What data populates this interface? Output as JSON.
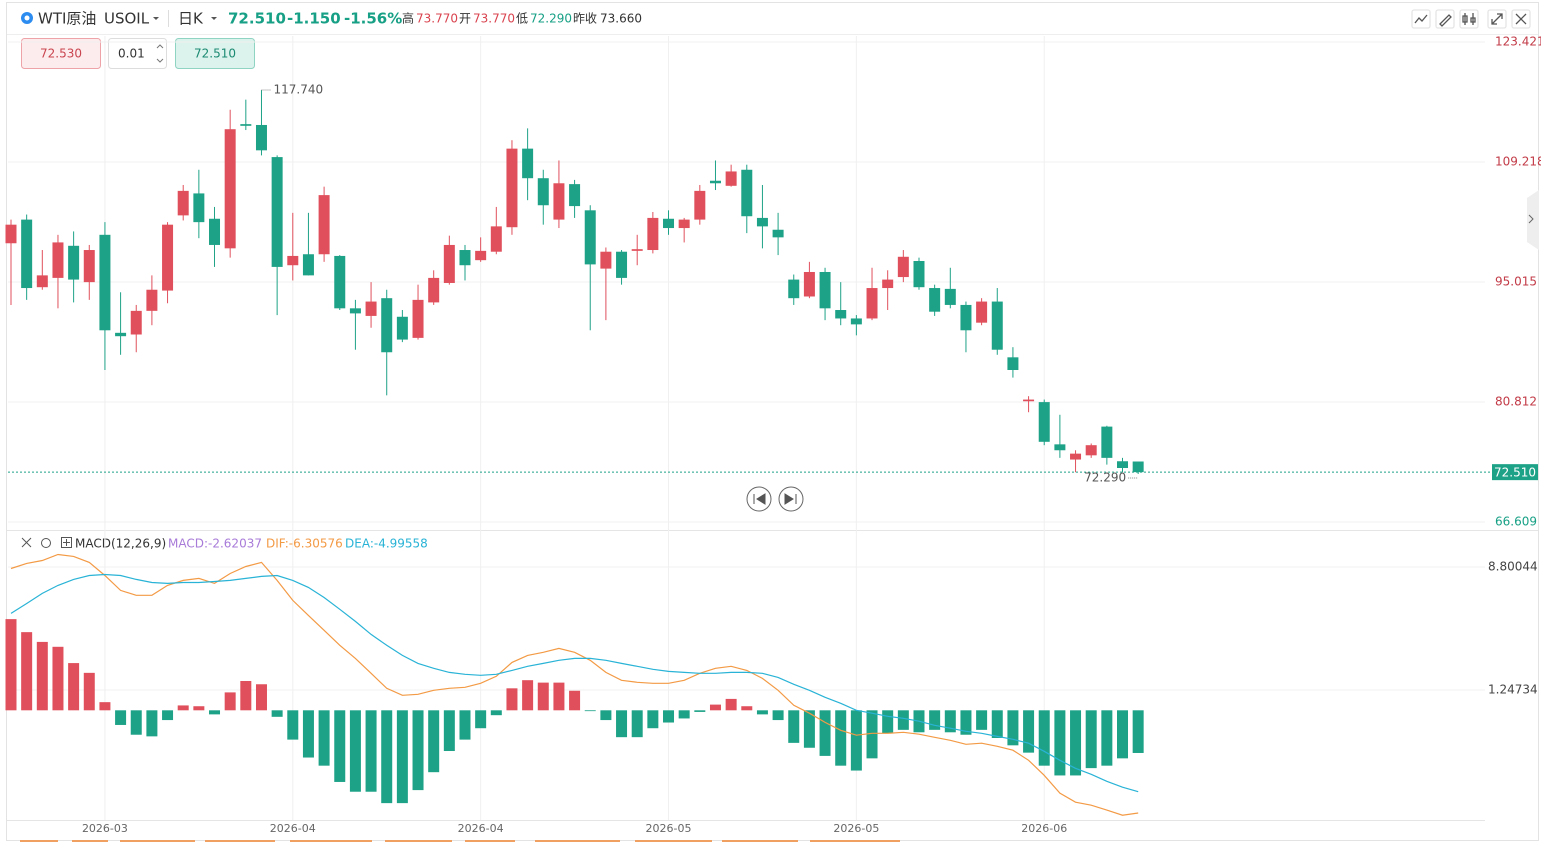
{
  "header": {
    "symbol": "WTI原油",
    "code": "USOIL",
    "period": "日K",
    "price": "72.510",
    "change": "-1.150",
    "change_pct": "-1.56%",
    "high_label": "高",
    "high": "73.770",
    "open_label": "开",
    "open": "73.770",
    "low_label": "低",
    "low": "72.290",
    "prev_close_label": "昨收",
    "prev_close": "73.660"
  },
  "order_panel": {
    "sell": "72.530",
    "quantity": "0.01",
    "buy": "72.510"
  },
  "chart_data": [
    {
      "type": "candlestick",
      "up_color": "#e0505c",
      "down_color": "#1ea287",
      "categories": [
        null,
        null,
        null,
        null,
        null,
        null,
        "2026-03",
        null,
        null,
        null,
        null,
        null,
        null,
        null,
        null,
        null,
        null,
        null,
        "2026-04",
        null,
        null,
        null,
        null,
        null,
        null,
        null,
        null,
        null,
        null,
        null,
        "2026-04",
        null,
        null,
        null,
        null,
        null,
        null,
        null,
        null,
        null,
        null,
        null,
        "2026-05",
        null,
        null,
        null,
        null,
        null,
        null,
        null,
        null,
        null,
        null,
        null,
        "2026-05",
        null,
        null,
        null,
        null,
        null,
        null,
        null,
        null,
        null,
        null,
        null,
        "2026-06",
        null,
        null,
        null,
        null,
        null,
        null
      ],
      "open": [
        99.6,
        102.4,
        94.4,
        95.5,
        99.3,
        95,
        100.6,
        89,
        88.8,
        91.6,
        94,
        102.9,
        105.5,
        102.5,
        99,
        113.7,
        113.6,
        109.8,
        97,
        98.3,
        98.3,
        98.1,
        91.9,
        91,
        93.1,
        90.9,
        88.4,
        92.6,
        94.9,
        98.8,
        97.6,
        98.6,
        101.5,
        110.8,
        107.3,
        102.4,
        106.6,
        103.5,
        96.6,
        98.6,
        98.7,
        98.8,
        102.5,
        101.4,
        102.4,
        107,
        106.4,
        108.3,
        102.6,
        101.2,
        95.3,
        93.3,
        96.2,
        91.7,
        90.7,
        90.7,
        94.3,
        95.6,
        97.5,
        94.3,
        94.2,
        92.3,
        90.2,
        92.7,
        86.1,
        80.9,
        80.8,
        75.8,
        74,
        74.5,
        77.9,
        73.8,
        73.77
      ],
      "high": [
        102.4,
        103,
        98.8,
        100.6,
        101,
        99.4,
        102.1,
        93.8,
        92.3,
        95.8,
        102.1,
        106.5,
        108.3,
        103.9,
        115.4,
        116.6,
        117.74,
        110,
        103.2,
        103.2,
        106.3,
        98.2,
        92.9,
        95,
        94.1,
        91.7,
        94.7,
        96.4,
        100.5,
        99.4,
        100.3,
        103.9,
        111.8,
        113.2,
        108.3,
        109.4,
        107.1,
        104.1,
        99.1,
        98.8,
        100.6,
        103.3,
        103.5,
        102.6,
        106.5,
        109.4,
        108.9,
        108.9,
        106.5,
        103.2,
        95.9,
        97.4,
        96.7,
        95,
        91.1,
        96.7,
        96.4,
        98.8,
        97.9,
        94.7,
        96.7,
        92.7,
        93.1,
        94.3,
        87.3,
        81.5,
        81.1,
        79.3,
        75.1,
        75.9,
        78,
        74.2,
        73.77
      ],
      "low": [
        92.3,
        92.9,
        94.1,
        91.9,
        92.6,
        92.9,
        84.6,
        86.4,
        86.7,
        89.9,
        92.5,
        102.3,
        100.2,
        96.8,
        97.9,
        113,
        110,
        91.1,
        95.2,
        95.8,
        97.4,
        91.7,
        87,
        89.6,
        81.6,
        87.9,
        88.2,
        92.3,
        94.7,
        95.2,
        97.4,
        98.3,
        100.6,
        104.7,
        101.8,
        101.4,
        102.6,
        89.3,
        90.5,
        94.7,
        97,
        98.4,
        100.6,
        99.7,
        101.8,
        105.9,
        106.3,
        100.8,
        99,
        98.2,
        92.3,
        93.1,
        90.5,
        89.9,
        88.7,
        90.5,
        91.7,
        95,
        94.1,
        91,
        91.9,
        86.7,
        89.9,
        86.4,
        83.7,
        79.6,
        75.7,
        74.2,
        72.5,
        74.2,
        73.4,
        72.5,
        72.29
      ],
      "close": [
        101.8,
        94.3,
        95.8,
        99.7,
        95.3,
        98.8,
        89.3,
        88.6,
        91.6,
        94.1,
        101.8,
        105.8,
        102.1,
        99.4,
        113.1,
        113.5,
        110.6,
        96.8,
        98.1,
        95.8,
        105.3,
        91.9,
        91.3,
        92.7,
        86.7,
        88.2,
        92.9,
        95.5,
        99.4,
        97,
        98.7,
        101.6,
        110.8,
        107.3,
        104.1,
        106.7,
        104,
        97.1,
        98.6,
        95.5,
        98.9,
        102.6,
        101.4,
        102.4,
        105.8,
        106.7,
        108.1,
        102.8,
        101.6,
        100.3,
        93.1,
        96.2,
        91.9,
        90.7,
        90,
        94.3,
        95.3,
        98,
        94.4,
        91.5,
        92.3,
        89.3,
        92.7,
        87,
        84.6,
        81.1,
        76.1,
        75.1,
        74.7,
        75.7,
        74.2,
        73,
        72.51
      ],
      "ylim": [
        66.609,
        123.421
      ],
      "yticks": [
        66.609,
        80.812,
        95.015,
        109.218,
        123.421
      ],
      "grid": true,
      "current_price": {
        "value": 72.51,
        "label": "72.510"
      },
      "extremes": [
        {
          "value": 117.74,
          "label": "117.740"
        },
        {
          "value": 72.29,
          "label": "72.290"
        }
      ]
    },
    {
      "type": "macd",
      "title": "MACD(12,26,9)",
      "ylim": [
        -6.736,
        10.765
      ],
      "yticks": [
        1.24734,
        8.80044
      ],
      "grid": true,
      "series": [
        {
          "name": "MACD:-2.62037",
          "color": "#a87bd8",
          "up_color": "#e0505c",
          "down_color": "#1ea287",
          "values": [
            5.6,
            4.8,
            4.2,
            3.9,
            2.9,
            2.3,
            0.5,
            -0.9,
            -1.5,
            -1.6,
            -0.6,
            0.3,
            0.25,
            -0.25,
            1.1,
            1.8,
            1.6,
            -0.4,
            -1.8,
            -2.9,
            -3.4,
            -4.4,
            -5.0,
            -5.0,
            -5.7,
            -5.7,
            -4.9,
            -3.8,
            -2.5,
            -1.8,
            -1.1,
            -0.3,
            1.35,
            1.85,
            1.7,
            1.7,
            1.2,
            -0.05,
            -0.6,
            -1.65,
            -1.65,
            -1.1,
            -0.75,
            -0.5,
            -0.1,
            0.35,
            0.7,
            0.25,
            -0.25,
            -0.6,
            -2.0,
            -2.3,
            -2.8,
            -3.4,
            -3.7,
            -2.95,
            -1.4,
            -1.2,
            -1.35,
            -1.2,
            -1.35,
            -1.5,
            -1.2,
            -1.7,
            -2.15,
            -2.6,
            -3.4,
            -4.0,
            -4.0,
            -3.55,
            -3.4,
            -2.95,
            -2.62037
          ]
        },
        {
          "name": "DIF:-6.30576",
          "color": "#f39a45",
          "values": [
            8.71,
            9.02,
            9.2,
            9.57,
            9.45,
            9.08,
            8.28,
            7.36,
            7.06,
            7.06,
            7.67,
            7.98,
            8.1,
            7.79,
            8.4,
            8.83,
            9.08,
            7.98,
            6.75,
            5.83,
            4.91,
            3.99,
            3.19,
            2.27,
            1.35,
            0.92,
            0.98,
            1.23,
            1.35,
            1.41,
            1.66,
            2.09,
            2.94,
            3.37,
            3.56,
            3.8,
            3.56,
            3.07,
            2.33,
            1.84,
            1.72,
            1.66,
            1.66,
            1.84,
            2.27,
            2.58,
            2.7,
            2.45,
            1.96,
            1.23,
            0.31,
            -0.18,
            -0.74,
            -1.23,
            -1.53,
            -1.41,
            -1.41,
            -1.35,
            -1.47,
            -1.66,
            -1.84,
            -2.09,
            -2.02,
            -2.21,
            -2.45,
            -3.07,
            -3.99,
            -5.09,
            -5.64,
            -5.83,
            -6.13,
            -6.44,
            -6.30576
          ]
        },
        {
          "name": "DEA:-4.99558",
          "color": "#29b3d6",
          "values": [
            5.95,
            6.56,
            7.18,
            7.67,
            8.04,
            8.28,
            8.34,
            8.28,
            8.04,
            7.85,
            7.79,
            7.85,
            7.85,
            7.91,
            7.98,
            8.1,
            8.22,
            8.28,
            7.98,
            7.55,
            6.93,
            6.2,
            5.46,
            4.66,
            3.99,
            3.37,
            2.88,
            2.58,
            2.33,
            2.21,
            2.15,
            2.21,
            2.45,
            2.7,
            2.88,
            3.07,
            3.19,
            3.19,
            3.07,
            2.88,
            2.7,
            2.52,
            2.39,
            2.33,
            2.27,
            2.27,
            2.33,
            2.33,
            2.27,
            2.02,
            1.6,
            1.23,
            0.8,
            0.43,
            0,
            -0.18,
            -0.37,
            -0.49,
            -0.67,
            -0.92,
            -1.1,
            -1.29,
            -1.41,
            -1.6,
            -1.78,
            -2.02,
            -2.52,
            -3.07,
            -3.56,
            -3.93,
            -4.36,
            -4.72,
            -4.99558
          ]
        }
      ]
    }
  ]
}
